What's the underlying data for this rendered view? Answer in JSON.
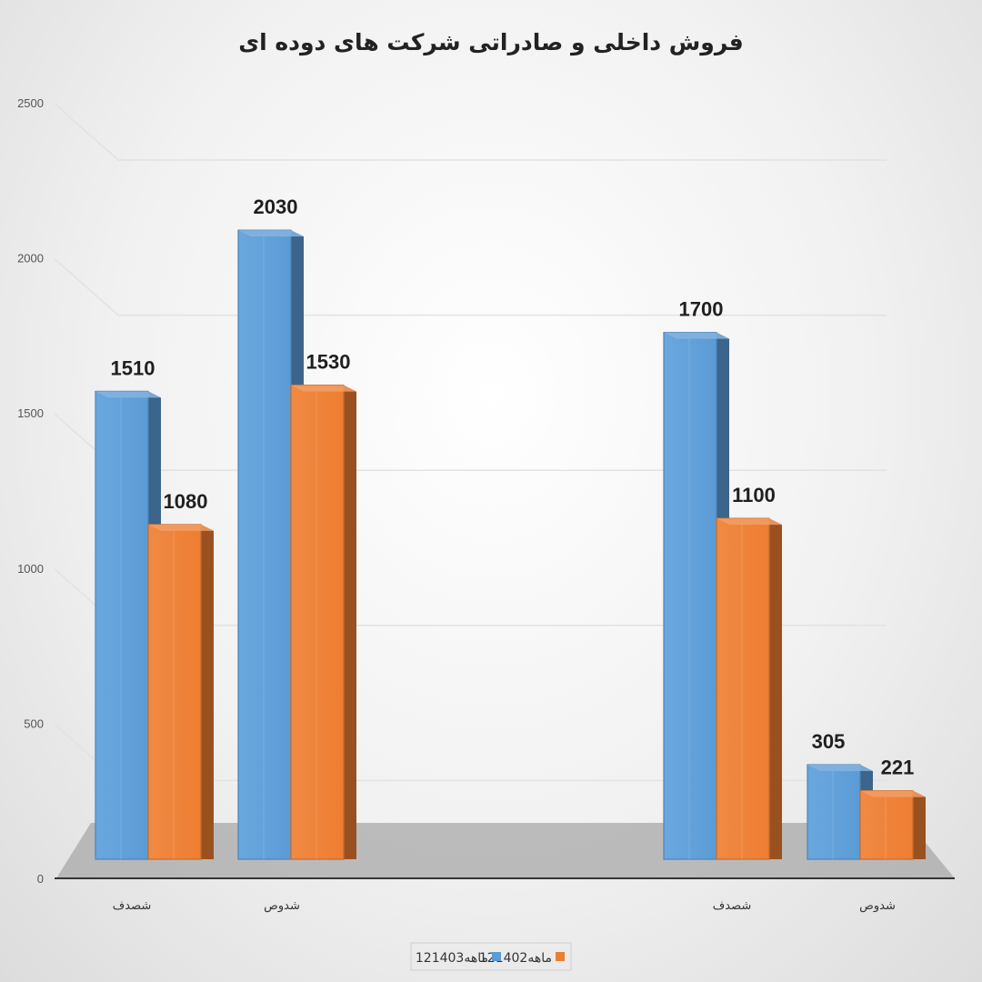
{
  "chart_data": {
    "type": "bar",
    "title": "فروش داخلی و صادراتی شرکت های دوده ای",
    "categories": [
      "شصدف",
      "شدوص",
      "شصدف",
      "شدوص"
    ],
    "series": [
      {
        "name": "12ماهه1403",
        "color": "#5b9bd5",
        "values": [
          1510,
          2030,
          1700,
          305
        ]
      },
      {
        "name": "12ماهه1402",
        "color": "#ed7d31",
        "values": [
          1080,
          1530,
          1100,
          221
        ]
      }
    ],
    "ylim": [
      0,
      2500
    ],
    "yticks": [
      "0",
      "500",
      "1000",
      "1500",
      "2000",
      "2500"
    ],
    "grid": true,
    "legend": "bottom",
    "style": "3d-clustered-column"
  }
}
